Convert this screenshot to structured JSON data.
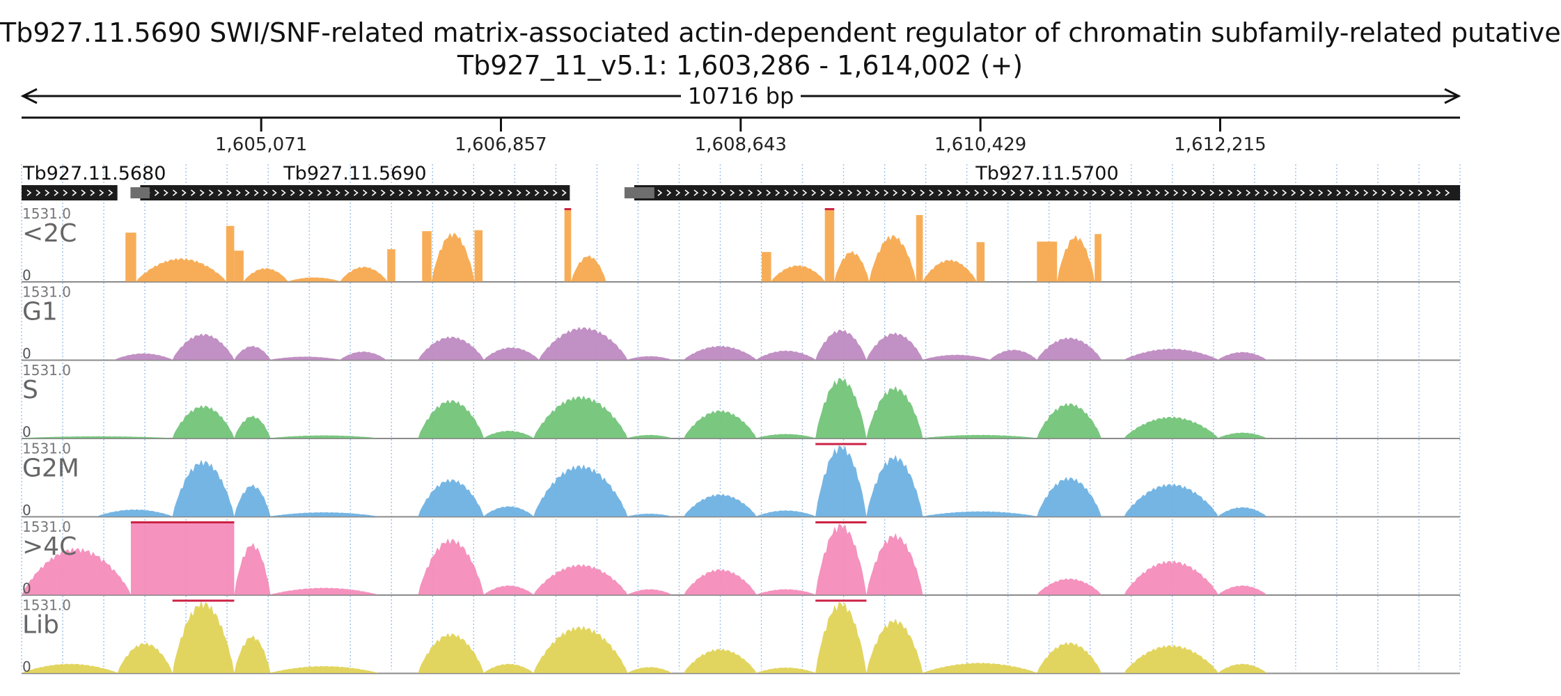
{
  "title": "Tb927.11.5690  SWI/SNF-related matrix-associated actin-dependent regulator of chromatin subfamily-related  putative",
  "region": "Tb927_11_v5.1: 1,603,286 - 1,614,002 (+)",
  "span_label": "10716 bp",
  "chart_data": {
    "type": "area",
    "title": "Tb927.11.5690  SWI/SNF-related matrix-associated actin-dependent regulator of chromatin subfamily-related  putative",
    "xlim": [
      1603286,
      1614002
    ],
    "x_ticks": [
      {
        "value": 1605071,
        "label": "1,605,071"
      },
      {
        "value": 1606857,
        "label": "1,606,857"
      },
      {
        "value": 1608643,
        "label": "1,608,643"
      },
      {
        "value": 1610429,
        "label": "1,610,429"
      },
      {
        "value": 1612215,
        "label": "1,612,215"
      }
    ],
    "genes": [
      {
        "name": "Tb927.11.5680",
        "start": 1603286,
        "end": 1604000,
        "strand": "+"
      },
      {
        "name": "Tb927.11.5690",
        "start": 1604170,
        "end": 1607370,
        "strand": "+"
      },
      {
        "name": "Tb927.11.5700",
        "start": 1607850,
        "end": 1614002,
        "strand": "+"
      }
    ],
    "ylim": [
      0,
      1531.0
    ],
    "y_max_label": "1531.0",
    "y_min_label": "0",
    "series": [
      {
        "name": "<2C",
        "color": "#f7a94e",
        "segments": [
          {
            "start": 1604060,
            "end": 1604140,
            "shape": "box",
            "peak": 1030
          },
          {
            "start": 1604140,
            "end": 1604810,
            "shape": "hump",
            "peak": 500
          },
          {
            "start": 1604810,
            "end": 1604870,
            "shape": "box",
            "peak": 1170
          },
          {
            "start": 1604870,
            "end": 1604940,
            "shape": "box",
            "peak": 650
          },
          {
            "start": 1604940,
            "end": 1605270,
            "shape": "hump",
            "peak": 290
          },
          {
            "start": 1605270,
            "end": 1605660,
            "shape": "hump",
            "peak": 90
          },
          {
            "start": 1605660,
            "end": 1606010,
            "shape": "hump",
            "peak": 320
          },
          {
            "start": 1606010,
            "end": 1606070,
            "shape": "box",
            "peak": 680
          },
          {
            "start": 1606270,
            "end": 1606340,
            "shape": "box",
            "peak": 1060
          },
          {
            "start": 1606340,
            "end": 1606660,
            "shape": "hump",
            "peak": 1050
          },
          {
            "start": 1606660,
            "end": 1606720,
            "shape": "box",
            "peak": 1080
          },
          {
            "start": 1607330,
            "end": 1607380,
            "shape": "box",
            "peak": 1531
          },
          {
            "start": 1607380,
            "end": 1607640,
            "shape": "hump",
            "peak": 560
          },
          {
            "start": 1608800,
            "end": 1608870,
            "shape": "box",
            "peak": 620
          },
          {
            "start": 1608870,
            "end": 1609270,
            "shape": "hump",
            "peak": 350
          },
          {
            "start": 1609270,
            "end": 1609340,
            "shape": "box",
            "peak": 1531
          },
          {
            "start": 1609340,
            "end": 1609600,
            "shape": "hump",
            "peak": 650
          },
          {
            "start": 1609600,
            "end": 1609950,
            "shape": "hump",
            "peak": 1000
          },
          {
            "start": 1609950,
            "end": 1610000,
            "shape": "box",
            "peak": 1400
          },
          {
            "start": 1610000,
            "end": 1610400,
            "shape": "hump",
            "peak": 470
          },
          {
            "start": 1610400,
            "end": 1610460,
            "shape": "box",
            "peak": 830
          },
          {
            "start": 1610850,
            "end": 1611000,
            "shape": "box",
            "peak": 840
          },
          {
            "start": 1611000,
            "end": 1611280,
            "shape": "hump",
            "peak": 980
          },
          {
            "start": 1611280,
            "end": 1611330,
            "shape": "box",
            "peak": 1000
          }
        ]
      },
      {
        "name": "G1",
        "color": "#be8ac1",
        "segments": [
          {
            "start": 1603980,
            "end": 1604410,
            "shape": "hump",
            "peak": 140
          },
          {
            "start": 1604410,
            "end": 1604870,
            "shape": "hump",
            "peak": 560
          },
          {
            "start": 1604870,
            "end": 1605140,
            "shape": "hump",
            "peak": 300
          },
          {
            "start": 1605140,
            "end": 1605660,
            "shape": "hump",
            "peak": 70
          },
          {
            "start": 1605660,
            "end": 1606000,
            "shape": "hump",
            "peak": 180
          },
          {
            "start": 1606240,
            "end": 1606730,
            "shape": "hump",
            "peak": 500
          },
          {
            "start": 1606730,
            "end": 1607140,
            "shape": "hump",
            "peak": 270
          },
          {
            "start": 1607140,
            "end": 1607800,
            "shape": "hump",
            "peak": 700
          },
          {
            "start": 1607800,
            "end": 1608130,
            "shape": "hump",
            "peak": 80
          },
          {
            "start": 1608220,
            "end": 1608760,
            "shape": "hump",
            "peak": 300
          },
          {
            "start": 1608760,
            "end": 1609200,
            "shape": "hump",
            "peak": 200
          },
          {
            "start": 1609200,
            "end": 1609580,
            "shape": "hump",
            "peak": 650
          },
          {
            "start": 1609580,
            "end": 1610000,
            "shape": "hump",
            "peak": 580
          },
          {
            "start": 1610000,
            "end": 1610500,
            "shape": "hump",
            "peak": 110
          },
          {
            "start": 1610500,
            "end": 1610850,
            "shape": "hump",
            "peak": 220
          },
          {
            "start": 1610850,
            "end": 1611330,
            "shape": "hump",
            "peak": 480
          },
          {
            "start": 1611500,
            "end": 1612200,
            "shape": "hump",
            "peak": 240
          },
          {
            "start": 1612200,
            "end": 1612560,
            "shape": "hump",
            "peak": 170
          }
        ]
      },
      {
        "name": "S",
        "color": "#73c479",
        "segments": [
          {
            "start": 1603290,
            "end": 1604410,
            "shape": "hump",
            "peak": 40
          },
          {
            "start": 1604410,
            "end": 1604870,
            "shape": "hump",
            "peak": 700
          },
          {
            "start": 1604870,
            "end": 1605140,
            "shape": "hump",
            "peak": 480
          },
          {
            "start": 1605140,
            "end": 1605940,
            "shape": "hump",
            "peak": 60
          },
          {
            "start": 1606240,
            "end": 1606730,
            "shape": "hump",
            "peak": 820
          },
          {
            "start": 1606730,
            "end": 1607100,
            "shape": "hump",
            "peak": 160
          },
          {
            "start": 1607100,
            "end": 1607800,
            "shape": "hump",
            "peak": 900
          },
          {
            "start": 1607800,
            "end": 1608130,
            "shape": "hump",
            "peak": 70
          },
          {
            "start": 1608220,
            "end": 1608760,
            "shape": "hump",
            "peak": 600
          },
          {
            "start": 1608760,
            "end": 1609200,
            "shape": "hump",
            "peak": 90
          },
          {
            "start": 1609200,
            "end": 1609580,
            "shape": "hump",
            "peak": 1300
          },
          {
            "start": 1609580,
            "end": 1610000,
            "shape": "hump",
            "peak": 1100
          },
          {
            "start": 1610000,
            "end": 1610850,
            "shape": "hump",
            "peak": 70
          },
          {
            "start": 1610850,
            "end": 1611330,
            "shape": "hump",
            "peak": 750
          },
          {
            "start": 1611500,
            "end": 1612200,
            "shape": "hump",
            "peak": 460
          },
          {
            "start": 1612200,
            "end": 1612560,
            "shape": "hump",
            "peak": 120
          }
        ]
      },
      {
        "name": "G2M",
        "color": "#6eb1e1",
        "segments": [
          {
            "start": 1603850,
            "end": 1604410,
            "shape": "hump",
            "peak": 150
          },
          {
            "start": 1604410,
            "end": 1604870,
            "shape": "hump",
            "peak": 1200
          },
          {
            "start": 1604870,
            "end": 1605140,
            "shape": "hump",
            "peak": 680
          },
          {
            "start": 1605140,
            "end": 1605940,
            "shape": "hump",
            "peak": 90
          },
          {
            "start": 1606240,
            "end": 1606730,
            "shape": "hump",
            "peak": 800
          },
          {
            "start": 1606730,
            "end": 1607100,
            "shape": "hump",
            "peak": 220
          },
          {
            "start": 1607100,
            "end": 1607800,
            "shape": "hump",
            "peak": 1100
          },
          {
            "start": 1607800,
            "end": 1608130,
            "shape": "hump",
            "peak": 60
          },
          {
            "start": 1608220,
            "end": 1608760,
            "shape": "hump",
            "peak": 480
          },
          {
            "start": 1608760,
            "end": 1609200,
            "shape": "hump",
            "peak": 130
          },
          {
            "start": 1609200,
            "end": 1609580,
            "shape": "hump",
            "peak": 1531
          },
          {
            "start": 1609580,
            "end": 1610000,
            "shape": "hump",
            "peak": 1300
          },
          {
            "start": 1610000,
            "end": 1610850,
            "shape": "hump",
            "peak": 110
          },
          {
            "start": 1610850,
            "end": 1611330,
            "shape": "hump",
            "peak": 840
          },
          {
            "start": 1611500,
            "end": 1612200,
            "shape": "hump",
            "peak": 700
          },
          {
            "start": 1612200,
            "end": 1612560,
            "shape": "hump",
            "peak": 200
          }
        ]
      },
      {
        "name": ">4C",
        "color": "#f48cbb",
        "segments": [
          {
            "start": 1603290,
            "end": 1604100,
            "shape": "hump",
            "peak": 1000
          },
          {
            "start": 1604100,
            "end": 1604870,
            "shape": "box",
            "peak": 1531
          },
          {
            "start": 1604870,
            "end": 1605140,
            "shape": "hump",
            "peak": 1100
          },
          {
            "start": 1605140,
            "end": 1605940,
            "shape": "hump",
            "peak": 150
          },
          {
            "start": 1606240,
            "end": 1606730,
            "shape": "hump",
            "peak": 1200
          },
          {
            "start": 1606730,
            "end": 1607100,
            "shape": "hump",
            "peak": 200
          },
          {
            "start": 1607100,
            "end": 1607800,
            "shape": "hump",
            "peak": 650
          },
          {
            "start": 1607800,
            "end": 1608130,
            "shape": "hump",
            "peak": 120
          },
          {
            "start": 1608220,
            "end": 1608760,
            "shape": "hump",
            "peak": 550
          },
          {
            "start": 1608760,
            "end": 1609200,
            "shape": "hump",
            "peak": 120
          },
          {
            "start": 1609200,
            "end": 1609580,
            "shape": "hump",
            "peak": 1531
          },
          {
            "start": 1609580,
            "end": 1610000,
            "shape": "hump",
            "peak": 1300
          },
          {
            "start": 1610850,
            "end": 1611330,
            "shape": "hump",
            "peak": 350
          },
          {
            "start": 1611500,
            "end": 1612200,
            "shape": "hump",
            "peak": 730
          },
          {
            "start": 1612200,
            "end": 1612560,
            "shape": "hump",
            "peak": 200
          }
        ]
      },
      {
        "name": "Lib",
        "color": "#e0d356",
        "segments": [
          {
            "start": 1603290,
            "end": 1604000,
            "shape": "hump",
            "peak": 200
          },
          {
            "start": 1604000,
            "end": 1604410,
            "shape": "hump",
            "peak": 650
          },
          {
            "start": 1604410,
            "end": 1604870,
            "shape": "hump",
            "peak": 1531
          },
          {
            "start": 1604870,
            "end": 1605140,
            "shape": "hump",
            "peak": 800
          },
          {
            "start": 1605140,
            "end": 1605940,
            "shape": "hump",
            "peak": 150
          },
          {
            "start": 1606240,
            "end": 1606730,
            "shape": "hump",
            "peak": 850
          },
          {
            "start": 1606730,
            "end": 1607100,
            "shape": "hump",
            "peak": 200
          },
          {
            "start": 1607100,
            "end": 1607800,
            "shape": "hump",
            "peak": 1000
          },
          {
            "start": 1607800,
            "end": 1608130,
            "shape": "hump",
            "peak": 130
          },
          {
            "start": 1608220,
            "end": 1608760,
            "shape": "hump",
            "peak": 520
          },
          {
            "start": 1608760,
            "end": 1609200,
            "shape": "hump",
            "peak": 120
          },
          {
            "start": 1609200,
            "end": 1609580,
            "shape": "hump",
            "peak": 1531
          },
          {
            "start": 1609580,
            "end": 1610000,
            "shape": "hump",
            "peak": 1150
          },
          {
            "start": 1610000,
            "end": 1610850,
            "shape": "hump",
            "peak": 220
          },
          {
            "start": 1610850,
            "end": 1611330,
            "shape": "hump",
            "peak": 660
          },
          {
            "start": 1611500,
            "end": 1612200,
            "shape": "hump",
            "peak": 600
          },
          {
            "start": 1612200,
            "end": 1612560,
            "shape": "hump",
            "peak": 200
          }
        ]
      }
    ]
  }
}
